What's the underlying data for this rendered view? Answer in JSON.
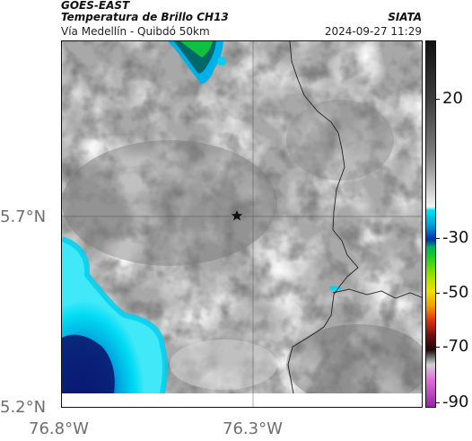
{
  "header": {
    "satellite": "GOES-EAST",
    "product": "Temperatura de Brillo CH13",
    "organization": "SIATA",
    "region": "Vía Medellín - Quibdó 50km",
    "timestamp": "2024-09-27 11:29"
  },
  "map": {
    "latitude_labels": [
      "5.7°N",
      "5.2°N"
    ],
    "longitude_labels": [
      "76.8°W",
      "76.3°W"
    ],
    "marker": "star-icon"
  },
  "colorbar": {
    "tick_labels": [
      "20",
      "-30",
      "-50",
      "-70",
      "-90"
    ],
    "colors": {
      "warm_top": "#1a1a1a",
      "gray_mid": "#8a8a8a",
      "white": "#ffffff",
      "cyan": "#00d8f0",
      "blue": "#0040b0",
      "green": "#10c040",
      "yellow": "#f0e000",
      "orange": "#f07000",
      "red": "#d01010",
      "dark": "#301010",
      "magenta": "#d040c0"
    }
  }
}
